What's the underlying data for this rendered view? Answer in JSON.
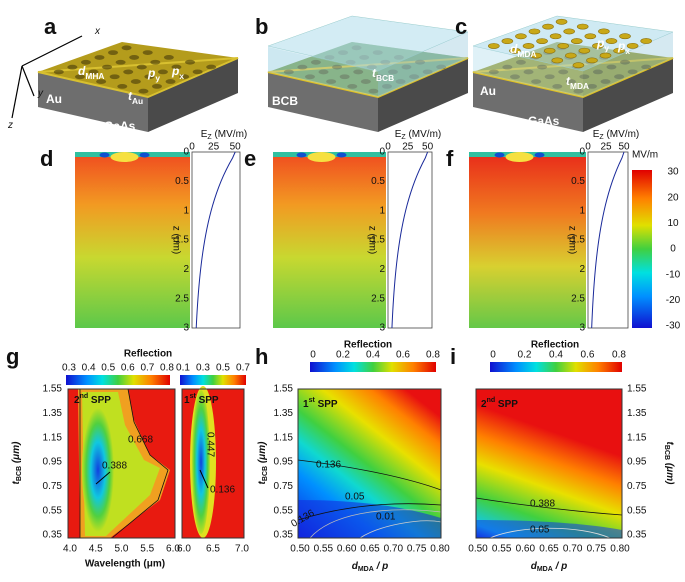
{
  "schematics": [
    {
      "label": "a",
      "texts": [
        {
          "t": "x"
        },
        {
          "t": "y"
        },
        {
          "t": "z"
        },
        {
          "t": "d",
          "sub": "MHA"
        },
        {
          "t": "p",
          "sub": "y"
        },
        {
          "t": "p",
          "sub": "x"
        },
        {
          "t": "Au"
        },
        {
          "t": "t",
          "sub": "Au"
        },
        {
          "t": "GaAs"
        }
      ]
    },
    {
      "label": "b",
      "texts": [
        {
          "t": "t",
          "sub": "BCB"
        },
        {
          "t": "BCB"
        },
        {
          "t": "GaAs"
        }
      ]
    },
    {
      "label": "c",
      "texts": [
        {
          "t": "d",
          "sub": "MDA"
        },
        {
          "t": "p",
          "sub": "y"
        },
        {
          "t": "p",
          "sub": "x"
        },
        {
          "t": "t",
          "sub": "MDA"
        },
        {
          "t": "Au"
        },
        {
          "t": "GaAs"
        }
      ]
    }
  ],
  "field_maps": {
    "panels": [
      {
        "label": "d"
      },
      {
        "label": "e"
      },
      {
        "label": "f"
      }
    ],
    "profile_title": {
      "t": "E",
      "sub": "Z",
      "after": " (MV/m)"
    },
    "profile_ticks": [
      "0",
      "25",
      "50"
    ],
    "depth_label": "z (μm)",
    "depth_ticks": [
      "0",
      "0.5",
      "1",
      "1.5",
      "2",
      "2.5",
      "3"
    ],
    "colorbar": {
      "unit": "MV/m",
      "ticks": [
        "30",
        "20",
        "10",
        "0",
        "-10",
        "-20",
        "-30"
      ]
    }
  },
  "reflection": {
    "g": {
      "label": "g",
      "colorbar_title": "Reflection",
      "colorbar_left_ticks": [
        "0.3",
        "0.4",
        "0.5",
        "0.6",
        "0.7",
        "0.8"
      ],
      "colorbar_right_ticks": [
        "0.1",
        "0.3",
        "0.5",
        "0.7"
      ],
      "y_label": {
        "t": "t",
        "sub": "BCB",
        "after": " (μm)"
      },
      "yticks": [
        "0.35",
        "0.55",
        "0.75",
        "0.95",
        "1.15",
        "1.35",
        "1.55"
      ],
      "xticks_left": [
        "4.0",
        "4.5",
        "5.0",
        "5.5",
        "6.0"
      ],
      "xticks_right": [
        "6.0",
        "6.5",
        "7.0"
      ],
      "x_label": "Wavelength (μm)",
      "annotations": [
        {
          "t": "2",
          "sup": "nd",
          "after": " SPP"
        },
        {
          "t": "1",
          "sup": "st",
          "after": " SPP"
        }
      ],
      "contour_labels": [
        "0.668",
        "0.388",
        "0.447",
        "0.136"
      ]
    },
    "h": {
      "label": "h",
      "colorbar_title": "Reflection",
      "colorbar_ticks": [
        "0",
        "0.2",
        "0.4",
        "0.6",
        "0.8"
      ],
      "y_label": {
        "t": "t",
        "sub": "BCB",
        "after": " (μm)"
      },
      "yticks": [
        "0.35",
        "0.55",
        "0.75",
        "0.95",
        "1.15",
        "1.35",
        "1.55"
      ],
      "xticks": [
        "0.50",
        "0.55",
        "0.60",
        "0.65",
        "0.70",
        "0.75",
        "0.80"
      ],
      "x_label": {
        "t": "d",
        "sub": "MDA",
        "after": " / p"
      },
      "annotation": {
        "t": "1",
        "sup": "st",
        "after": " SPP"
      },
      "contour_labels": [
        "0.136",
        "0.05",
        "0.01",
        "0.136"
      ]
    },
    "i": {
      "label": "i",
      "colorbar_title": "Reflection",
      "colorbar_ticks": [
        "0",
        "0.2",
        "0.4",
        "0.6",
        "0.8"
      ],
      "y_label": {
        "t": "t",
        "sub": "BCB",
        "after": " (μm)"
      },
      "yticks": [
        "0.35",
        "0.55",
        "0.75",
        "0.95",
        "1.15",
        "1.35",
        "1.55"
      ],
      "xticks": [
        "0.50",
        "0.55",
        "0.60",
        "0.65",
        "0.70",
        "0.75",
        "0.80"
      ],
      "x_label": {
        "t": "d",
        "sub": "MDA",
        "after": " / p"
      },
      "annotation": {
        "t": "2",
        "sup": "nd",
        "after": " SPP"
      },
      "contour_labels": [
        "0.388",
        "0.05"
      ]
    }
  }
}
